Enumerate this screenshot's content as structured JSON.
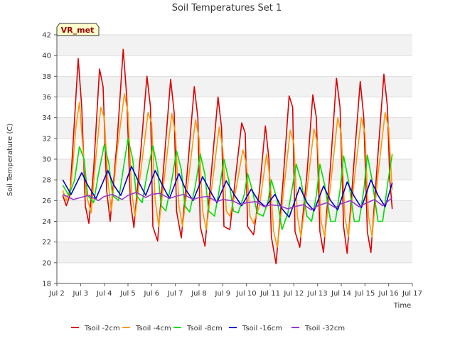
{
  "chart_data": {
    "type": "line",
    "title": "Soil Temperatures Set 1",
    "xlabel": "Time",
    "ylabel": "Soil Temperature (C)",
    "badge": "VR_met",
    "xlim": [
      2,
      17
    ],
    "ylim": [
      18,
      42
    ],
    "x_ticks": [
      2,
      3,
      4,
      5,
      6,
      7,
      8,
      9,
      10,
      11,
      12,
      13,
      14,
      15,
      16,
      17
    ],
    "x_tick_labels": [
      "Jul 2",
      "Jul 3",
      "Jul 4",
      "Jul 5",
      "Jul 6",
      "Jul 7",
      "Jul 8",
      "Jul 9",
      "Jul 10",
      "Jul 11",
      "Jul 12",
      "Jul 13",
      "Jul 14",
      "Jul 15",
      "Jul 16",
      "Jul 17"
    ],
    "y_ticks": [
      18,
      20,
      22,
      24,
      26,
      28,
      30,
      32,
      34,
      36,
      38,
      40,
      42
    ],
    "grid": true,
    "legend_position": "bottom",
    "series": [
      {
        "name": "Tsoil -2cm",
        "color": "#dd0000",
        "x": [
          2.25,
          2.4,
          2.55,
          2.75,
          2.9,
          3.05,
          3.2,
          3.35,
          3.55,
          3.8,
          3.95,
          4.1,
          4.25,
          4.55,
          4.8,
          4.95,
          5.1,
          5.25,
          5.55,
          5.8,
          5.95,
          6.05,
          6.25,
          6.55,
          6.8,
          6.95,
          7.05,
          7.25,
          7.55,
          7.8,
          7.95,
          8.05,
          8.25,
          8.55,
          8.8,
          8.95,
          9.05,
          9.3,
          9.55,
          9.8,
          9.95,
          10.05,
          10.3,
          10.55,
          10.8,
          10.95,
          11.05,
          11.25,
          11.55,
          11.8,
          11.95,
          12.05,
          12.25,
          12.55,
          12.8,
          12.95,
          13.1,
          13.25,
          13.55,
          13.8,
          13.95,
          14.1,
          14.25,
          14.55,
          14.8,
          14.95,
          15.1,
          15.25,
          15.55,
          15.8,
          15.95,
          16.05,
          16.15
        ],
        "values": [
          26.5,
          25.5,
          26.5,
          34.0,
          39.7,
          35.0,
          25.5,
          23.8,
          29.0,
          38.7,
          37.0,
          27.0,
          24.0,
          32.0,
          40.6,
          36.0,
          26.0,
          23.4,
          31.0,
          38.0,
          35.0,
          23.5,
          22.1,
          30.5,
          37.7,
          34.5,
          25.0,
          22.4,
          30.0,
          37.0,
          34.0,
          23.5,
          21.6,
          29.5,
          36.0,
          33.0,
          23.5,
          23.2,
          28.5,
          33.5,
          32.5,
          23.5,
          22.7,
          27.0,
          33.2,
          30.0,
          22.5,
          19.9,
          28.0,
          36.1,
          35.0,
          23.0,
          21.5,
          28.5,
          36.2,
          34.0,
          23.0,
          21.0,
          29.5,
          37.8,
          35.0,
          23.5,
          20.9,
          30.0,
          37.5,
          34.0,
          23.0,
          21.0,
          30.5,
          38.2,
          35.0,
          28.0,
          25.2
        ]
      },
      {
        "name": "Tsoil -4cm",
        "color": "#ff9900",
        "x": [
          2.25,
          2.4,
          2.6,
          2.8,
          2.95,
          3.1,
          3.25,
          3.45,
          3.6,
          3.85,
          4.0,
          4.15,
          4.3,
          4.55,
          4.85,
          5.0,
          5.15,
          5.3,
          5.55,
          5.85,
          6.0,
          6.15,
          6.3,
          6.55,
          6.85,
          7.0,
          7.15,
          7.3,
          7.55,
          7.85,
          8.0,
          8.15,
          8.3,
          8.55,
          8.85,
          9.0,
          9.15,
          9.3,
          9.55,
          9.85,
          10.0,
          10.15,
          10.3,
          10.55,
          10.85,
          11.0,
          11.15,
          11.3,
          11.55,
          11.85,
          12.0,
          12.15,
          12.3,
          12.55,
          12.85,
          13.0,
          13.15,
          13.3,
          13.55,
          13.85,
          14.0,
          14.15,
          14.3,
          14.55,
          14.85,
          15.0,
          15.15,
          15.3,
          15.55,
          15.85,
          16.0,
          16.15
        ],
        "values": [
          27.0,
          26.0,
          27.5,
          33.0,
          35.5,
          31.0,
          26.5,
          24.8,
          29.0,
          35.0,
          34.0,
          28.0,
          25.0,
          31.0,
          36.3,
          34.5,
          27.0,
          24.5,
          29.0,
          34.5,
          33.5,
          26.0,
          23.5,
          28.5,
          34.4,
          32.5,
          25.5,
          23.5,
          28.0,
          33.8,
          32.0,
          25.0,
          23.2,
          27.5,
          33.1,
          31.0,
          25.0,
          24.5,
          27.0,
          30.9,
          29.5,
          24.5,
          23.8,
          25.5,
          30.5,
          28.0,
          23.0,
          21.5,
          26.5,
          32.8,
          31.5,
          24.5,
          22.5,
          27.0,
          32.9,
          31.5,
          24.0,
          22.5,
          27.5,
          34.0,
          32.5,
          24.5,
          22.5,
          28.0,
          34.0,
          32.5,
          24.5,
          22.5,
          28.5,
          34.5,
          33.0,
          27.0
        ]
      },
      {
        "name": "Tsoil -8cm",
        "color": "#00dd00",
        "x": [
          2.25,
          2.5,
          2.75,
          2.95,
          3.15,
          3.3,
          3.55,
          3.75,
          4.0,
          4.2,
          4.35,
          4.6,
          4.8,
          5.0,
          5.2,
          5.35,
          5.6,
          5.8,
          6.05,
          6.25,
          6.4,
          6.6,
          6.85,
          7.05,
          7.25,
          7.4,
          7.6,
          7.85,
          8.05,
          8.25,
          8.4,
          8.65,
          8.85,
          9.05,
          9.25,
          9.45,
          9.65,
          9.9,
          10.05,
          10.25,
          10.45,
          10.7,
          10.9,
          11.05,
          11.3,
          11.5,
          11.75,
          11.95,
          12.1,
          12.3,
          12.55,
          12.75,
          12.95,
          13.1,
          13.3,
          13.55,
          13.75,
          13.95,
          14.1,
          14.3,
          14.55,
          14.75,
          14.95,
          15.1,
          15.3,
          15.55,
          15.75,
          15.95,
          16.15
        ],
        "values": [
          27.5,
          26.5,
          28.0,
          31.2,
          30.0,
          26.5,
          25.8,
          28.5,
          31.4,
          29.5,
          26.5,
          26.0,
          29.0,
          32.0,
          30.0,
          26.5,
          25.8,
          28.5,
          31.3,
          29.0,
          25.5,
          25.0,
          28.0,
          30.8,
          29.0,
          25.5,
          24.9,
          27.5,
          30.5,
          28.5,
          25.0,
          24.5,
          27.0,
          30.0,
          28.0,
          25.0,
          24.8,
          26.5,
          28.6,
          27.0,
          24.8,
          24.5,
          25.8,
          28.0,
          26.0,
          23.2,
          24.8,
          27.5,
          29.5,
          28.0,
          24.5,
          24.0,
          26.5,
          29.5,
          27.5,
          24.0,
          24.0,
          27.0,
          30.3,
          28.0,
          24.0,
          24.0,
          27.0,
          30.4,
          28.0,
          24.0,
          24.0,
          27.5,
          30.5
        ]
      },
      {
        "name": "Tsoil -16cm",
        "color": "#0000cc",
        "x": [
          2.25,
          2.6,
          3.05,
          3.3,
          3.65,
          4.15,
          4.4,
          4.7,
          5.15,
          5.45,
          5.75,
          6.15,
          6.45,
          6.75,
          7.15,
          7.45,
          7.75,
          8.15,
          8.45,
          8.75,
          9.15,
          9.5,
          9.8,
          10.2,
          10.5,
          10.8,
          11.2,
          11.5,
          11.8,
          12.25,
          12.55,
          12.85,
          13.25,
          13.55,
          13.85,
          14.25,
          14.55,
          14.85,
          15.25,
          15.55,
          15.85,
          16.15
        ],
        "values": [
          28.0,
          26.6,
          28.7,
          27.5,
          26.2,
          28.9,
          27.5,
          26.5,
          29.3,
          27.8,
          26.5,
          28.9,
          27.5,
          26.2,
          28.6,
          27.0,
          26.0,
          28.3,
          27.0,
          25.8,
          27.9,
          26.5,
          25.5,
          27.1,
          26.0,
          25.4,
          26.6,
          25.2,
          24.4,
          27.3,
          25.8,
          25.0,
          27.4,
          26.0,
          25.1,
          27.8,
          26.4,
          25.3,
          28.0,
          26.5,
          25.4,
          27.7
        ]
      },
      {
        "name": "Tsoil -32cm",
        "color": "#9933cc",
        "x": [
          2.25,
          2.7,
          3.0,
          3.35,
          3.75,
          4.0,
          4.35,
          4.75,
          5.0,
          5.35,
          5.75,
          6.0,
          6.35,
          6.75,
          7.0,
          7.35,
          7.75,
          8.0,
          8.35,
          8.75,
          9.0,
          9.4,
          9.75,
          10.0,
          10.4,
          10.75,
          11.0,
          11.4,
          11.75,
          12.0,
          12.4,
          12.75,
          13.0,
          13.4,
          13.75,
          14.0,
          14.4,
          14.75,
          15.0,
          15.4,
          15.75,
          16.0,
          16.15
        ],
        "values": [
          26.6,
          26.1,
          26.3,
          26.5,
          26.0,
          26.4,
          26.6,
          26.1,
          26.5,
          26.8,
          26.3,
          26.6,
          26.7,
          26.2,
          26.4,
          26.6,
          26.1,
          26.3,
          26.4,
          25.9,
          26.1,
          26.0,
          25.6,
          25.8,
          25.9,
          25.4,
          25.6,
          25.5,
          25.2,
          25.4,
          25.6,
          25.1,
          25.5,
          25.8,
          25.3,
          25.7,
          26.0,
          25.4,
          25.7,
          26.1,
          25.5,
          26.0,
          26.3
        ]
      }
    ]
  },
  "colors": {
    "band": "#f2f2f2",
    "gridline": "#dddddd",
    "badge_fill": "#ffffcc",
    "badge_text": "#990000"
  }
}
